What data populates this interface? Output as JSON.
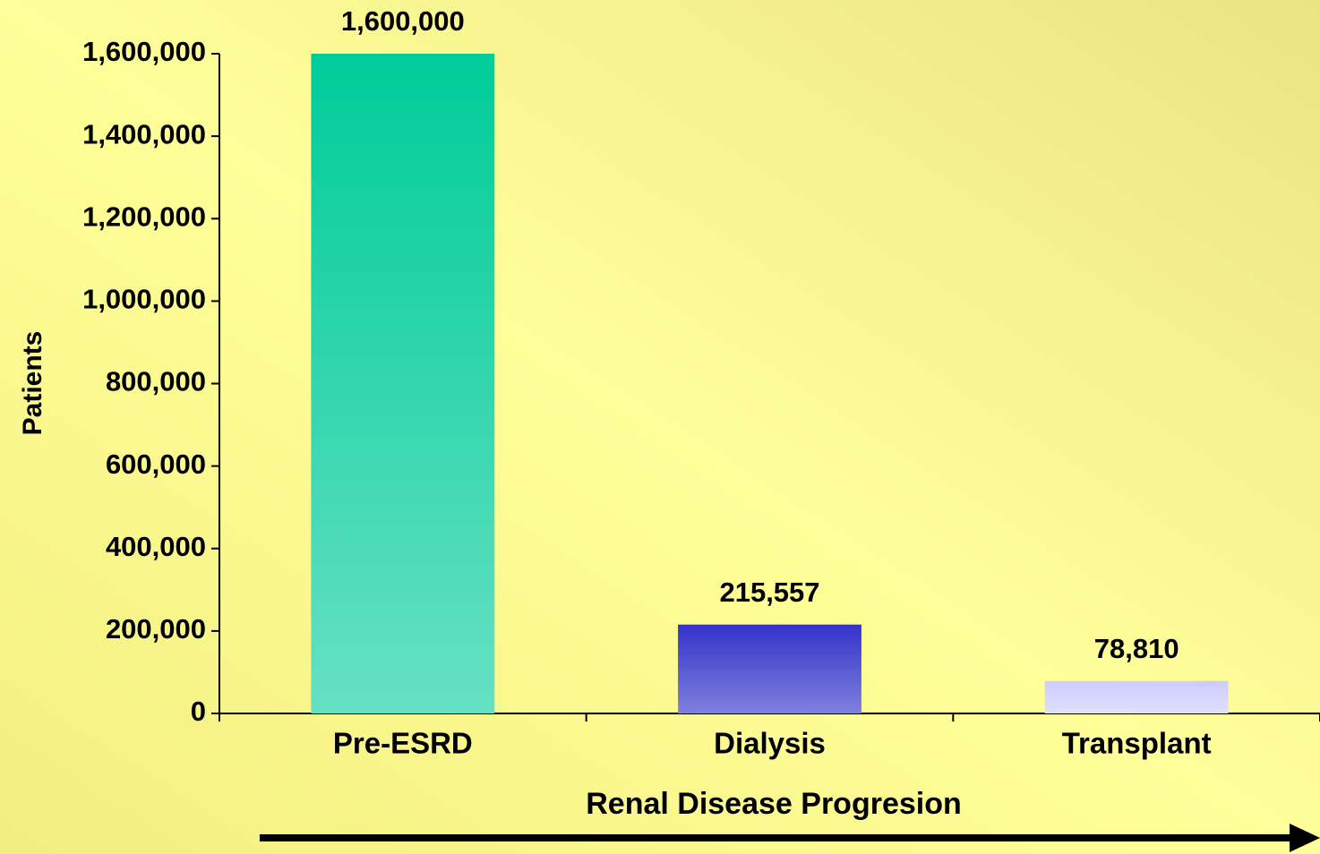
{
  "chart_data": {
    "type": "bar",
    "categories": [
      "Pre-ESRD",
      "Dialysis",
      "Transplant"
    ],
    "values": [
      1600000,
      215557,
      78810
    ],
    "value_labels": [
      "1,600,000",
      "215,557",
      "78,810"
    ],
    "colors": [
      [
        "#00cc99",
        "#66e0c4"
      ],
      [
        "#3333cc",
        "#8080dd"
      ],
      [
        "#ccccff",
        "#e0e0ff"
      ]
    ],
    "ylabel": "Patients",
    "xlabel": "Renal Disease Progresion",
    "ylim": [
      0,
      1600000
    ],
    "yticks": [
      0,
      {
        "value": 200000,
        "label": "200,000"
      },
      {
        "value": 400000,
        "label": "400,000"
      },
      {
        "value": 600000,
        "label": "600,000"
      },
      {
        "value": 800000,
        "label": "800,000"
      },
      {
        "value": 1000000,
        "label": "1,000,000"
      },
      {
        "value": 1200000,
        "label": "1,200,000"
      },
      {
        "value": 1400000,
        "label": "1,400,000"
      },
      {
        "value": 1600000,
        "label": "1,600,000"
      }
    ],
    "grid": false
  }
}
